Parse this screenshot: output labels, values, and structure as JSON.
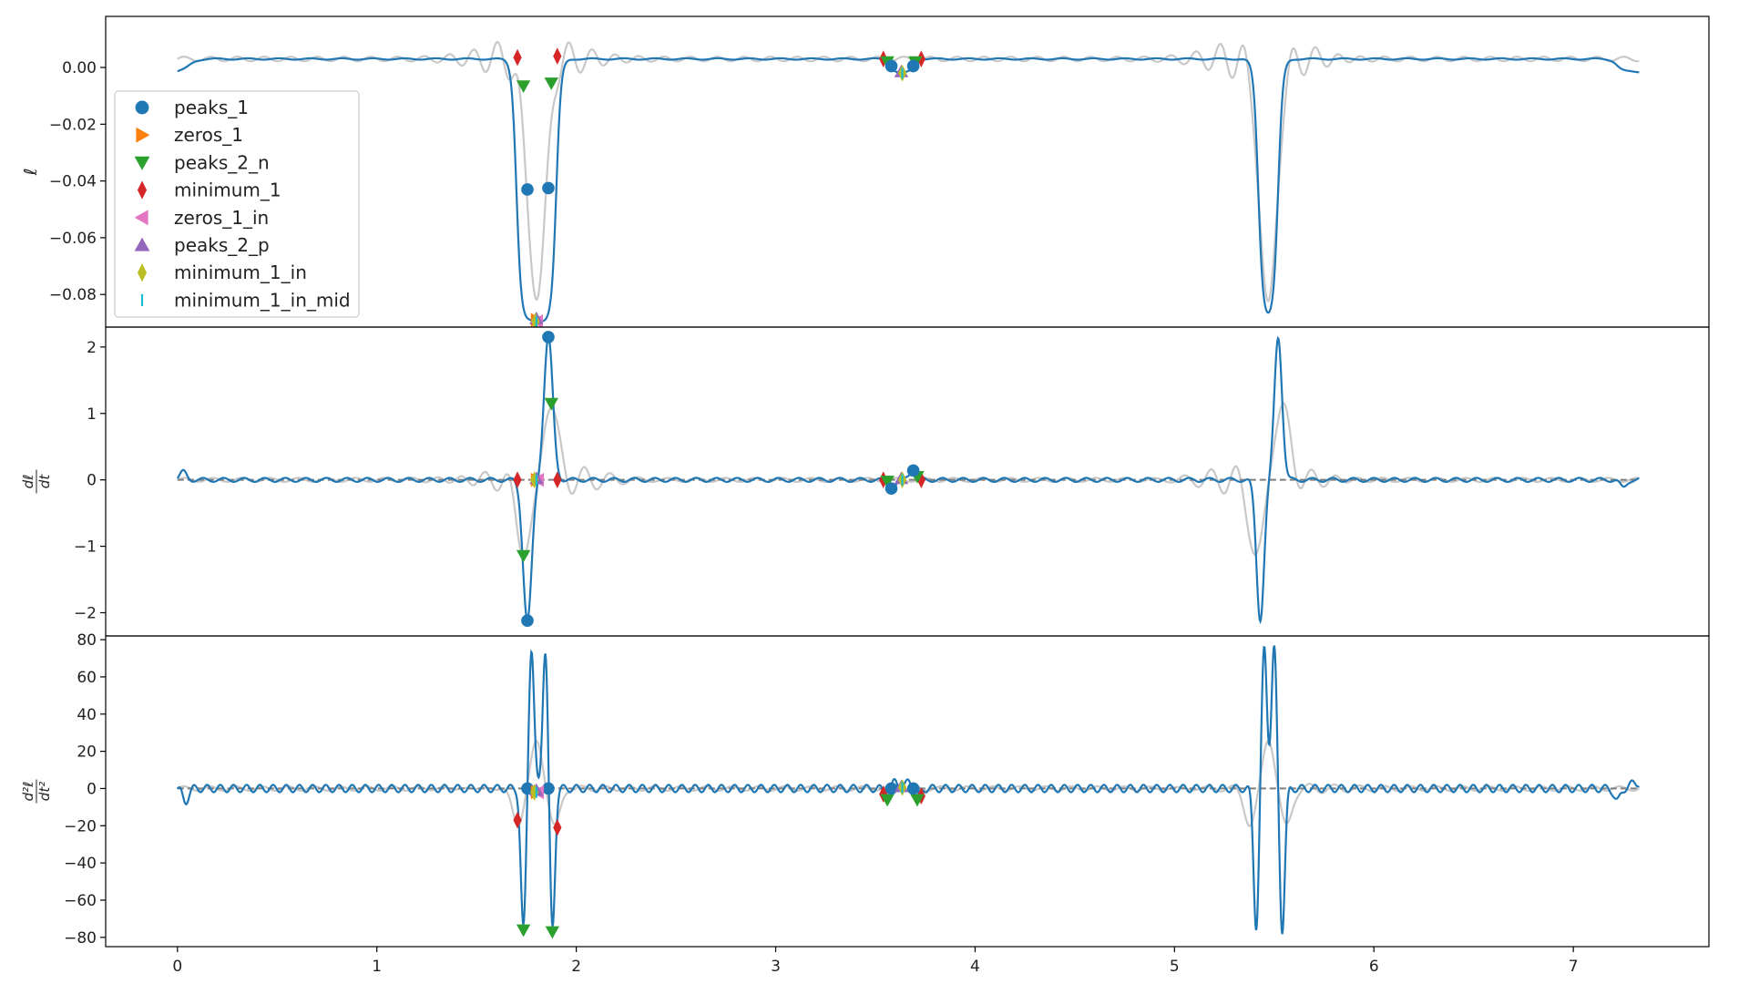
{
  "chart_data": {
    "type": "line",
    "x_ticks": [
      "0",
      "1",
      "2",
      "3",
      "4",
      "5",
      "6",
      "7"
    ],
    "xlim": [
      -0.36,
      7.68
    ],
    "series_colors": {
      "signal": "#1f77b4",
      "reference": "#c8c8c8",
      "zero_line": "#7f7f7f"
    },
    "marker_colors": {
      "peaks_1": "#1f77b4",
      "zeros_1": "#ff7f0e",
      "peaks_2_n": "#2ca02c",
      "minimum_1": "#d62728",
      "zeros_1_in": "#e377c2",
      "peaks_2_p": "#9467bd",
      "minimum_1_in": "#bcbd22",
      "minimum_1_in_mid": "#17becf"
    },
    "legend": {
      "placement": "upper-left of top panel",
      "entries": [
        {
          "label": "peaks_1",
          "marker": "circle"
        },
        {
          "label": "zeros_1",
          "marker": "triangle-right"
        },
        {
          "label": "peaks_2_n",
          "marker": "triangle-down"
        },
        {
          "label": "minimum_1",
          "marker": "thin-diamond"
        },
        {
          "label": "zeros_1_in",
          "marker": "triangle-left"
        },
        {
          "label": "peaks_2_p",
          "marker": "triangle-up"
        },
        {
          "label": "minimum_1_in",
          "marker": "thin-diamond"
        },
        {
          "label": "minimum_1_in_mid",
          "marker": "vline"
        }
      ]
    },
    "panels": [
      {
        "ylabel": "ℓ",
        "ylim": [
          -0.0915,
          0.018
        ],
        "y_ticks": [
          0.0,
          -0.02,
          -0.04,
          -0.06,
          -0.08
        ],
        "y_tick_labels": [
          "0.00",
          "−0.02",
          "−0.04",
          "−0.06",
          "−0.08"
        ],
        "zero_line": false,
        "signal": {
          "baseline": 0.003,
          "start_value": -0.0015,
          "dips": [
            {
              "x1": 1.7,
              "x2": 1.9,
              "depth": -0.0895
            },
            {
              "x1": 5.42,
              "x2": 5.52,
              "depth": -0.089
            }
          ],
          "bumps": [
            {
              "center": 3.635,
              "half_width": 0.09,
              "value": -0.002
            }
          ],
          "end_fall": {
            "x": 7.22,
            "value": -0.0015
          }
        },
        "reference": {
          "baseline": 0.003,
          "ripple": 0.0008,
          "dips": [
            {
              "center": 1.8,
              "depth": -0.082
            },
            {
              "center": 5.47,
              "depth": -0.082
            }
          ],
          "ring_amplitude": 0.01
        },
        "markers": [
          {
            "key": "peaks_1",
            "x": 1.755,
            "y": -0.043
          },
          {
            "key": "peaks_1",
            "x": 1.86,
            "y": -0.0425
          },
          {
            "key": "peaks_1",
            "x": 3.58,
            "y": 0.0005
          },
          {
            "key": "peaks_1",
            "x": 3.69,
            "y": 0.0005
          },
          {
            "key": "peaks_2_n",
            "x": 1.735,
            "y": -0.0065
          },
          {
            "key": "peaks_2_n",
            "x": 1.875,
            "y": -0.0055
          },
          {
            "key": "peaks_2_n",
            "x": 3.56,
            "y": 0.002
          },
          {
            "key": "peaks_2_n",
            "x": 3.7,
            "y": 0.002
          },
          {
            "key": "minimum_1",
            "x": 1.705,
            "y": 0.0035
          },
          {
            "key": "minimum_1",
            "x": 1.905,
            "y": 0.004
          },
          {
            "key": "minimum_1",
            "x": 3.54,
            "y": 0.003
          },
          {
            "key": "minimum_1",
            "x": 3.73,
            "y": 0.003
          },
          {
            "key": "zeros_1",
            "x": 1.8,
            "y": -0.089
          },
          {
            "key": "zeros_1_in",
            "x": 1.805,
            "y": -0.0895
          },
          {
            "key": "peaks_2_p",
            "x": 1.8,
            "y": -0.0885
          },
          {
            "key": "peaks_2_p",
            "x": 3.63,
            "y": -0.0015
          },
          {
            "key": "minimum_1_in",
            "x": 1.795,
            "y": -0.0895
          },
          {
            "key": "minimum_1_in",
            "x": 3.635,
            "y": -0.002
          },
          {
            "key": "minimum_1_in_mid",
            "x": 1.8,
            "y": -0.0895
          },
          {
            "key": "minimum_1_in_mid",
            "x": 3.635,
            "y": -0.002
          }
        ]
      },
      {
        "ylabel": "dℓ/dt",
        "ylim": [
          -2.35,
          2.3
        ],
        "y_ticks": [
          2,
          1,
          0,
          -1,
          -2
        ],
        "y_tick_labels": [
          "2",
          "1",
          "0",
          "−1",
          "−2"
        ],
        "zero_line": true,
        "signal": {
          "spikes": [
            {
              "x": 1.755,
              "value": -2.12,
              "width": 0.04
            },
            {
              "x": 1.86,
              "value": 2.15,
              "width": 0.04
            },
            {
              "x": 5.43,
              "value": -2.1,
              "width": 0.035
            },
            {
              "x": 5.52,
              "value": 2.15,
              "width": 0.035
            },
            {
              "x": 3.58,
              "value": -0.13,
              "width": 0.04
            },
            {
              "x": 3.69,
              "value": 0.14,
              "width": 0.04
            },
            {
              "x": 0.03,
              "value": 0.12,
              "width": 0.03
            },
            {
              "x": 7.25,
              "value": -0.12,
              "width": 0.03
            }
          ],
          "ripple": 0.03
        },
        "reference": {
          "spikes": [
            {
              "x": 1.74,
              "value": -1.12,
              "width": 0.06
            },
            {
              "x": 1.87,
              "value": 1.12,
              "width": 0.06
            },
            {
              "x": 5.41,
              "value": -1.12,
              "width": 0.06
            },
            {
              "x": 5.54,
              "value": 1.12,
              "width": 0.06
            }
          ],
          "ring_amplitude": 0.3
        },
        "markers": [
          {
            "key": "peaks_1",
            "x": 1.755,
            "y": -2.12
          },
          {
            "key": "peaks_1",
            "x": 1.86,
            "y": 2.15
          },
          {
            "key": "peaks_1",
            "x": 3.58,
            "y": -0.13
          },
          {
            "key": "peaks_1",
            "x": 3.69,
            "y": 0.14
          },
          {
            "key": "peaks_2_n",
            "x": 1.735,
            "y": -1.14
          },
          {
            "key": "peaks_2_n",
            "x": 1.875,
            "y": 1.15
          },
          {
            "key": "peaks_2_n",
            "x": 3.56,
            "y": -0.02
          },
          {
            "key": "peaks_2_n",
            "x": 3.71,
            "y": 0.05
          },
          {
            "key": "minimum_1",
            "x": 1.705,
            "y": 0.0
          },
          {
            "key": "minimum_1",
            "x": 1.905,
            "y": 0.0
          },
          {
            "key": "minimum_1",
            "x": 3.54,
            "y": 0.0
          },
          {
            "key": "minimum_1",
            "x": 3.73,
            "y": 0.0
          },
          {
            "key": "zeros_1",
            "x": 1.8,
            "y": 0.0
          },
          {
            "key": "zeros_1_in",
            "x": 1.81,
            "y": 0.0
          },
          {
            "key": "peaks_2_p",
            "x": 1.8,
            "y": 0.02
          },
          {
            "key": "peaks_2_p",
            "x": 3.63,
            "y": 0.02
          },
          {
            "key": "minimum_1_in",
            "x": 1.79,
            "y": 0.0
          },
          {
            "key": "minimum_1_in",
            "x": 3.635,
            "y": 0.0
          },
          {
            "key": "minimum_1_in_mid",
            "x": 1.8,
            "y": 0.0
          },
          {
            "key": "minimum_1_in_mid",
            "x": 3.635,
            "y": 0.0
          }
        ]
      },
      {
        "ylabel": "d²ℓ/dt²",
        "ylim": [
          -85,
          82
        ],
        "y_ticks": [
          80,
          60,
          40,
          20,
          0,
          -20,
          -40,
          -60,
          -80
        ],
        "y_tick_labels": [
          "80",
          "60",
          "40",
          "20",
          "0",
          "−20",
          "−40",
          "−60",
          "−80"
        ],
        "zero_line": true,
        "signal": {
          "bursts": [
            {
              "x": 1.735,
              "value": -76,
              "width": 0.022
            },
            {
              "x": 1.775,
              "value": 76,
              "width": 0.022
            },
            {
              "x": 1.845,
              "value": 76,
              "width": 0.022
            },
            {
              "x": 1.88,
              "value": -77,
              "width": 0.022
            },
            {
              "x": 5.41,
              "value": -75,
              "width": 0.022
            },
            {
              "x": 5.45,
              "value": 76,
              "width": 0.022
            },
            {
              "x": 5.5,
              "value": 76,
              "width": 0.022
            },
            {
              "x": 5.54,
              "value": -77,
              "width": 0.022
            },
            {
              "x": 3.56,
              "value": -4,
              "width": 0.025
            },
            {
              "x": 3.6,
              "value": 4,
              "width": 0.025
            },
            {
              "x": 3.67,
              "value": 4,
              "width": 0.025
            },
            {
              "x": 3.71,
              "value": -5,
              "width": 0.025
            },
            {
              "x": 0.04,
              "value": -7,
              "width": 0.025
            },
            {
              "x": 7.22,
              "value": -7,
              "width": 0.025
            }
          ],
          "ripple": 2,
          "end_value": 3
        },
        "reference": {
          "bursts": [
            {
              "x": 1.71,
              "value": -20,
              "width": 0.04
            },
            {
              "x": 1.8,
              "value": 27,
              "width": 0.04
            },
            {
              "x": 1.89,
              "value": -20,
              "width": 0.04
            },
            {
              "x": 5.38,
              "value": -20,
              "width": 0.04
            },
            {
              "x": 5.47,
              "value": 27,
              "width": 0.04
            },
            {
              "x": 5.56,
              "value": -20,
              "width": 0.04
            }
          ],
          "ring_amplitude": 3
        },
        "markers": [
          {
            "key": "peaks_1",
            "x": 1.755,
            "y": 0.0
          },
          {
            "key": "peaks_1",
            "x": 1.86,
            "y": 0.0
          },
          {
            "key": "peaks_1",
            "x": 3.58,
            "y": 0.0
          },
          {
            "key": "peaks_1",
            "x": 3.69,
            "y": 0.0
          },
          {
            "key": "peaks_2_n",
            "x": 1.735,
            "y": -76
          },
          {
            "key": "peaks_2_n",
            "x": 1.88,
            "y": -77
          },
          {
            "key": "peaks_2_n",
            "x": 3.56,
            "y": -6
          },
          {
            "key": "peaks_2_n",
            "x": 3.71,
            "y": -6
          },
          {
            "key": "minimum_1",
            "x": 1.705,
            "y": -17
          },
          {
            "key": "minimum_1",
            "x": 1.905,
            "y": -21
          },
          {
            "key": "minimum_1",
            "x": 3.54,
            "y": -3
          },
          {
            "key": "minimum_1",
            "x": 3.73,
            "y": -4
          },
          {
            "key": "zeros_1",
            "x": 1.8,
            "y": -2
          },
          {
            "key": "zeros_1_in",
            "x": 1.81,
            "y": -2
          },
          {
            "key": "peaks_2_p",
            "x": 1.8,
            "y": -1
          },
          {
            "key": "peaks_2_p",
            "x": 3.63,
            "y": 1
          },
          {
            "key": "minimum_1_in",
            "x": 1.79,
            "y": -2
          },
          {
            "key": "minimum_1_in",
            "x": 3.635,
            "y": 0.5
          },
          {
            "key": "minimum_1_in_mid",
            "x": 1.8,
            "y": -2
          },
          {
            "key": "minimum_1_in_mid",
            "x": 3.635,
            "y": 0.5
          }
        ]
      }
    ]
  }
}
